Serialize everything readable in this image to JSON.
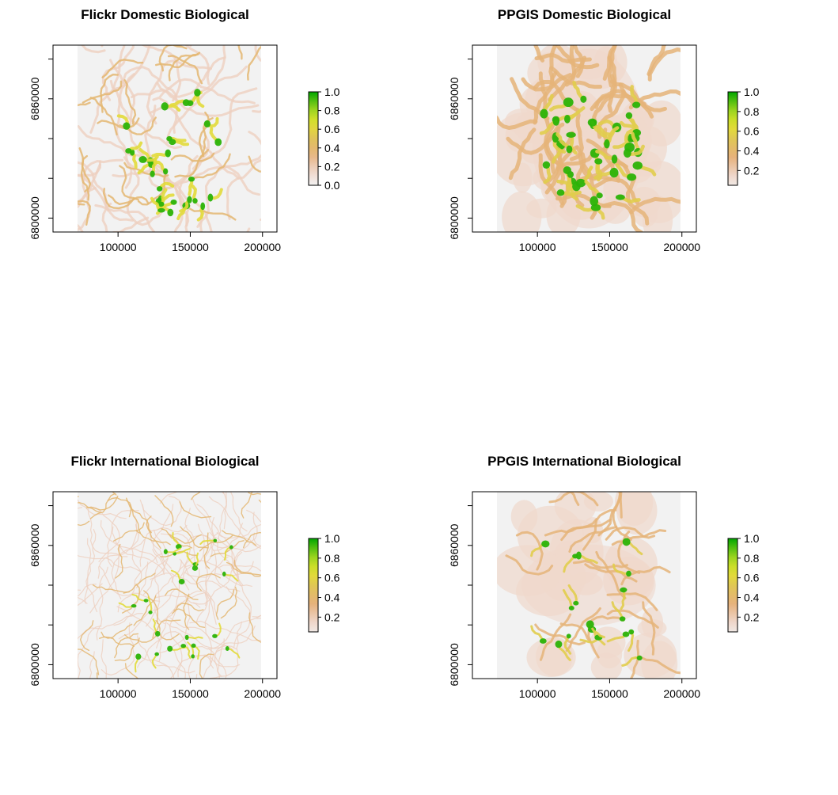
{
  "chart_data": [
    {
      "type": "heatmap",
      "title": "Flickr Domestic Biological",
      "x_ticks": [
        "100000",
        "150000",
        "200000"
      ],
      "y_ticks": [
        "6800000",
        "6860000"
      ],
      "x_tick_values": [
        100000,
        150000,
        200000
      ],
      "y_tick_values": [
        6800000,
        6860000
      ],
      "xlim": [
        55000,
        210000
      ],
      "ylim": [
        6793000,
        6887000
      ],
      "raster_extent": {
        "x": [
          72000,
          199000
        ],
        "y": [
          6793000,
          6887000
        ]
      },
      "legend": {
        "labels": [
          "1.0",
          "0.8",
          "0.6",
          "0.4",
          "0.2",
          "0.0"
        ],
        "values": [
          1.0,
          0.8,
          0.6,
          0.4,
          0.2,
          0.0
        ],
        "range": [
          0,
          1
        ]
      },
      "value_range": [
        0,
        1
      ],
      "pattern": "network"
    },
    {
      "type": "heatmap",
      "title": "PPGIS Domestic Biological",
      "x_ticks": [
        "100000",
        "150000",
        "200000"
      ],
      "y_ticks": [
        "6800000",
        "6860000"
      ],
      "x_tick_values": [
        100000,
        150000,
        200000
      ],
      "y_tick_values": [
        6800000,
        6860000
      ],
      "xlim": [
        55000,
        210000
      ],
      "ylim": [
        6793000,
        6887000
      ],
      "raster_extent": {
        "x": [
          72000,
          199000
        ],
        "y": [
          6793000,
          6887000
        ]
      },
      "legend": {
        "labels": [
          "1.0",
          "0.8",
          "0.6",
          "0.4",
          "0.2"
        ],
        "values": [
          1.0,
          0.8,
          0.6,
          0.4,
          0.2
        ],
        "range": [
          0.05,
          1
        ]
      },
      "value_range": [
        0.05,
        1
      ],
      "pattern": "blob-large"
    },
    {
      "type": "heatmap",
      "title": "Flickr International Biological",
      "x_ticks": [
        "100000",
        "150000",
        "200000"
      ],
      "y_ticks": [
        "6800000",
        "6860000"
      ],
      "x_tick_values": [
        100000,
        150000,
        200000
      ],
      "y_tick_values": [
        6800000,
        6860000
      ],
      "xlim": [
        55000,
        210000
      ],
      "ylim": [
        6793000,
        6887000
      ],
      "raster_extent": {
        "x": [
          72000,
          199000
        ],
        "y": [
          6793000,
          6887000
        ]
      },
      "legend": {
        "labels": [
          "1.0",
          "0.8",
          "0.6",
          "0.4",
          "0.2"
        ],
        "values": [
          1.0,
          0.8,
          0.6,
          0.4,
          0.2
        ],
        "range": [
          0.05,
          1
        ]
      },
      "value_range": [
        0.05,
        1
      ],
      "pattern": "network-fine"
    },
    {
      "type": "heatmap",
      "title": "PPGIS International Biological",
      "x_ticks": [
        "100000",
        "150000",
        "200000"
      ],
      "y_ticks": [
        "6800000",
        "6860000"
      ],
      "x_tick_values": [
        100000,
        150000,
        200000
      ],
      "y_tick_values": [
        6800000,
        6860000
      ],
      "xlim": [
        55000,
        210000
      ],
      "ylim": [
        6793000,
        6887000
      ],
      "raster_extent": {
        "x": [
          72000,
          199000
        ],
        "y": [
          6793000,
          6887000
        ]
      },
      "legend": {
        "labels": [
          "1.0",
          "0.8",
          "0.6",
          "0.4",
          "0.2"
        ],
        "values": [
          1.0,
          0.8,
          0.6,
          0.4,
          0.2
        ],
        "range": [
          0.05,
          1
        ]
      },
      "value_range": [
        0.05,
        1
      ],
      "pattern": "blob-sparse"
    }
  ],
  "colors": {
    "ramp": [
      "#F2F2F2",
      "#EED3C5",
      "#E6B27C",
      "#E0C35A",
      "#E3E32F",
      "#8FD21C",
      "#00A600"
    ],
    "nodata": "#FFFFFF",
    "axis": "#000000"
  }
}
